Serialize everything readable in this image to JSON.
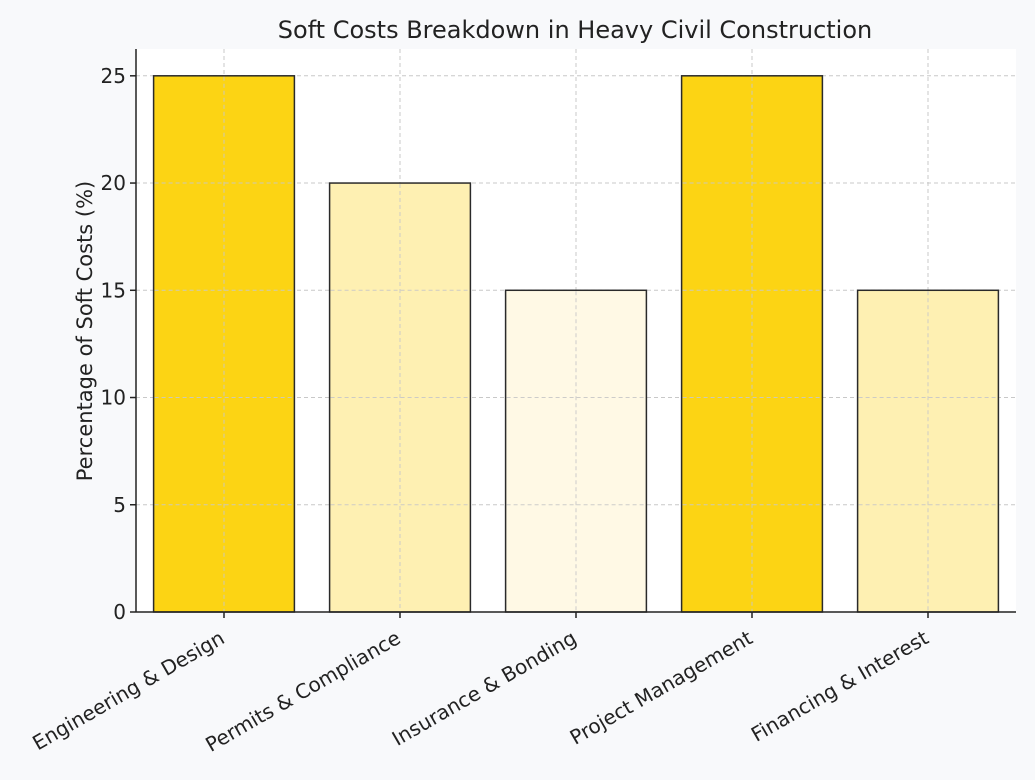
{
  "chart_data": {
    "type": "bar",
    "title": "Soft Costs Breakdown in Heavy Civil Construction",
    "xlabel": "",
    "ylabel": "Percentage of Soft Costs (%)",
    "categories": [
      "Engineering & Design",
      "Permits & Compliance",
      "Insurance & Bonding",
      "Project Management",
      "Financing & Interest"
    ],
    "values": [
      25,
      20,
      15,
      25,
      15
    ],
    "bar_colors": [
      "#fcd414",
      "#fef0b2",
      "#fff9e5",
      "#fcd414",
      "#fef0b2"
    ],
    "ylim": [
      0,
      26.25
    ],
    "yticks": [
      0,
      5,
      10,
      15,
      20,
      25
    ],
    "grid": true,
    "legend": "none",
    "colors": {
      "page_background": "#f8f9fb",
      "plot_background": "#ffffff",
      "bar_edge": "#2a2a2a",
      "grid": "#c8c8c8",
      "axis": "#222222"
    }
  }
}
